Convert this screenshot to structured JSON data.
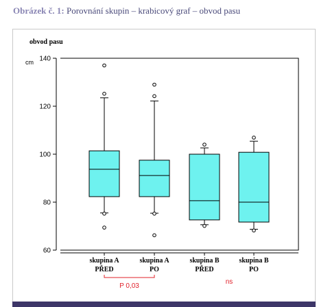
{
  "figure": {
    "label": "Obrázek č. 1:",
    "title": "Porovnání skupin – krabicový graf – obvod pasu"
  },
  "chart_data": {
    "type": "box",
    "ylabel": "obvod pasu",
    "unit": "cm",
    "ylim": [
      60,
      140
    ],
    "yticks": [
      60,
      80,
      100,
      120,
      140
    ],
    "grid": false,
    "categories": [
      [
        "skupina A",
        "PŘED"
      ],
      [
        "skupina A",
        "PO"
      ],
      [
        "skupina B",
        "PŘED"
      ],
      [
        "skupina B",
        "PO"
      ]
    ],
    "boxes": [
      {
        "whisker_low": 75.5,
        "q1": 82.3,
        "median": 93.7,
        "q3": 101.4,
        "whisker_high": 123.5,
        "outliers": [
          69.4,
          75.2,
          125.2,
          137.0
        ]
      },
      {
        "whisker_low": 75.4,
        "q1": 82.3,
        "median": 91.1,
        "q3": 97.5,
        "whisker_high": 122.2,
        "outliers": [
          66.2,
          75.2,
          124.2,
          129.0
        ]
      },
      {
        "whisker_low": 70.6,
        "q1": 72.6,
        "median": 80.6,
        "q3": 100.0,
        "whisker_high": 102.6,
        "outliers": [
          70.1,
          104.0
        ]
      },
      {
        "whisker_low": 68.7,
        "q1": 71.7,
        "median": 80.0,
        "q3": 100.8,
        "whisker_high": 105.4,
        "outliers": [
          68.2,
          106.9
        ]
      }
    ],
    "box_color": "#6ef2ef",
    "annotations": [
      {
        "text": "P 0,03",
        "groups": [
          0,
          1
        ]
      },
      {
        "text": "ns",
        "groups": [
          2,
          3
        ]
      }
    ]
  }
}
